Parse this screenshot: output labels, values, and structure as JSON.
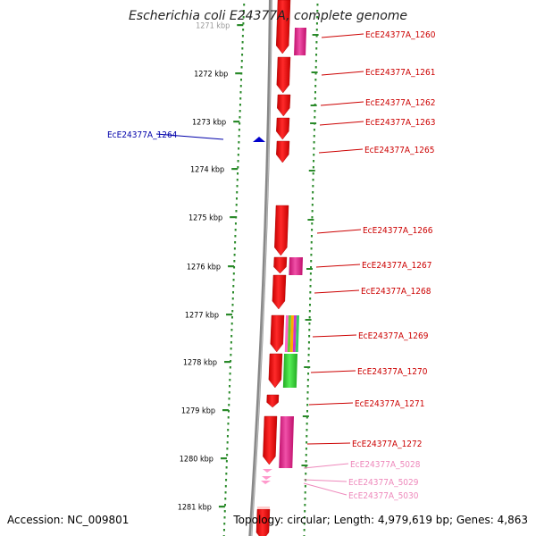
{
  "title": "Escherichia coli E24377A, complete genome",
  "accession_label": "Accession: NC_009801",
  "topology_text": "Topology: circular; Length: 4,979,619 bp; Genes: 4,863",
  "colors": {
    "feature_red": "#ee0000",
    "feature_pink": "#e0288a",
    "feature_green": "#33cc33",
    "scale_green": "#2a8a2a",
    "label_red": "#cc0000",
    "label_blue": "#0000aa",
    "label_pink": "#ee88bb",
    "backbone": "#888888"
  },
  "scale": {
    "unit": "kbp",
    "ticks": [
      "1271 kbp",
      "1272 kbp",
      "1273 kbp",
      "1274 kbp",
      "1275 kbp",
      "1276 kbp",
      "1277 kbp",
      "1278 kbp",
      "1279 kbp",
      "1280 kbp",
      "1281 kbp"
    ]
  },
  "genes": [
    {
      "label": "EcE24377A_1260",
      "color": "red"
    },
    {
      "label": "EcE24377A_1261",
      "color": "red"
    },
    {
      "label": "EcE24377A_1262",
      "color": "red"
    },
    {
      "label": "EcE24377A_1263",
      "color": "red"
    },
    {
      "label": "EcE24377A_1264",
      "color": "blue"
    },
    {
      "label": "EcE24377A_1265",
      "color": "red"
    },
    {
      "label": "EcE24377A_1266",
      "color": "red"
    },
    {
      "label": "EcE24377A_1267",
      "color": "red"
    },
    {
      "label": "EcE24377A_1268",
      "color": "red"
    },
    {
      "label": "EcE24377A_1269",
      "color": "red"
    },
    {
      "label": "EcE24377A_1270",
      "color": "red"
    },
    {
      "label": "EcE24377A_1271",
      "color": "red"
    },
    {
      "label": "EcE24377A_1272",
      "color": "red"
    },
    {
      "label": "EcE24377A_5028",
      "color": "pink"
    },
    {
      "label": "EcE24377A_5029",
      "color": "pink"
    },
    {
      "label": "EcE24377A_5030",
      "color": "pink"
    }
  ]
}
